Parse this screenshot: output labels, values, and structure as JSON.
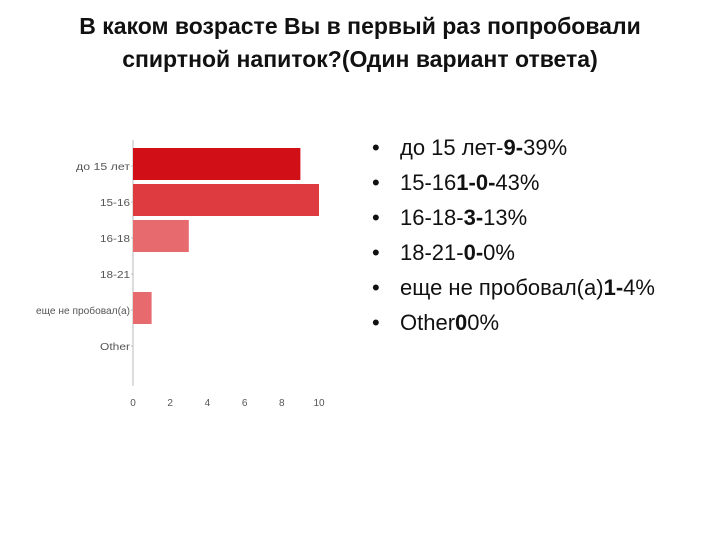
{
  "title_lines": [
    "В каком возрасте Вы в первый раз попробовали",
    "спиртной напиток?(Один вариант ответа)"
  ],
  "colors": {
    "bar_dark": "#d10f16",
    "bar_mid": "#de3b40",
    "bar_light": "#e66a6e"
  },
  "chart_data": {
    "type": "bar",
    "orientation": "horizontal",
    "categories": [
      "до 15 лет",
      "15-16",
      "16-18",
      "18-21",
      "еще не пробовал(а)",
      "Other"
    ],
    "values": [
      9,
      10,
      3,
      0,
      1,
      0
    ],
    "xticks": [
      "0",
      "2",
      "4",
      "6",
      "8",
      "10"
    ],
    "xlim": [
      0,
      10
    ],
    "grid": false,
    "legend": "none"
  },
  "bullets": [
    {
      "label": "до 15 лет-",
      "count": "9",
      "sep": "-",
      "percent": "39%"
    },
    {
      "label": "15-16",
      "count": "1-0",
      "sep": "-",
      "percent": "43%"
    },
    {
      "label": "16-18-",
      "count": "3",
      "sep": "-",
      "percent": "13%"
    },
    {
      "label": "18-21-",
      "count": "0",
      "sep": "-",
      "percent": "0%"
    },
    {
      "label": "еще не пробовал(а)",
      "count": "1",
      "sep": "-",
      "percent": "4%"
    },
    {
      "label": "Other",
      "count": "0",
      "sep": "",
      "percent": "0%"
    }
  ],
  "bullet_char": "•"
}
